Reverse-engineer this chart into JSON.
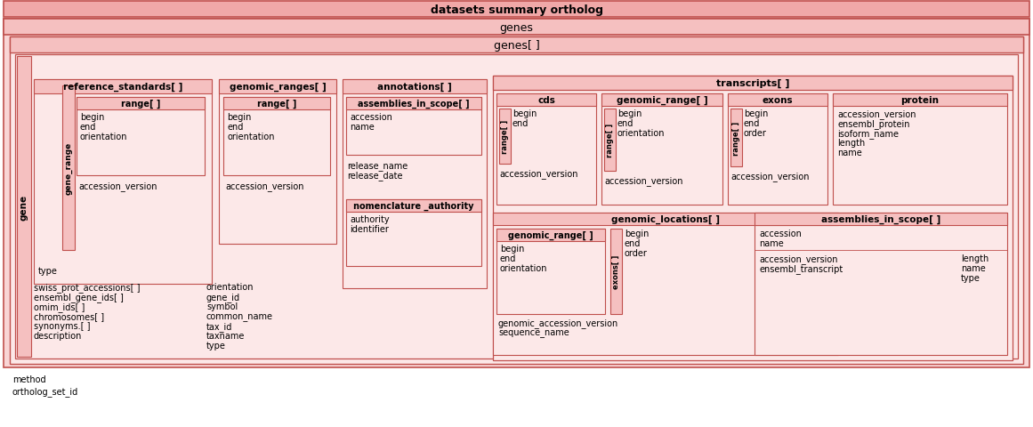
{
  "outer_title": "datasets summary ortholog",
  "genes_label": "genes",
  "genes_arr_label": "genes[ ]",
  "gene_label": "gene",
  "gene_range_label": "gene_range",
  "bg_lightest": "#fdf0f0",
  "bg_light": "#f9e0e0",
  "bg_medium": "#f5c8c8",
  "bg_dark": "#f0b0b0",
  "border_color": "#c0504d",
  "ref_std_label": "reference_standards[ ]",
  "range_in_ref_label": "range[ ]",
  "range_in_ref_fields": [
    "begin",
    "end",
    "orientation"
  ],
  "ref_std_acc": "accession_version",
  "ref_std_type": "type",
  "gen_ranges_label": "genomic_ranges[ ]",
  "range_in_gr_label": "range[ ]",
  "range_in_gr_fields": [
    "begin",
    "end",
    "orientation"
  ],
  "gen_ranges_acc": "accession_version",
  "annot_label": "annotations[ ]",
  "assemblies_in_scope_label": "assemblies_in_scope[ ]",
  "assemblies_fields": [
    "accession",
    "name"
  ],
  "annot_fields": [
    "release_name",
    "release_date"
  ],
  "nomenclature_label": "nomenclature _authority",
  "nomenclature_fields": [
    "authority",
    "identifier"
  ],
  "transcripts_label": "transcripts[ ]",
  "cds_label": "cds",
  "cds_range_label": "range[ ]",
  "cds_range_fields": [
    "begin",
    "end"
  ],
  "cds_acc": "accession_version",
  "genomic_range_label": "genomic_range[ ]",
  "gr_range_label": "range[ ]",
  "gr_range_fields": [
    "begin",
    "end",
    "orientation"
  ],
  "gr_acc": "accession_version",
  "exons_label": "exons",
  "exons_range_label": "range[ ]",
  "exons_range_fields": [
    "begin",
    "end",
    "order"
  ],
  "exons_acc": "accession_version",
  "protein_label": "protein",
  "protein_fields": [
    "accession_version",
    "ensembl_protein",
    "isoform_name",
    "length",
    "name"
  ],
  "genomic_locs_label": "genomic_locations[ ]",
  "gen_loc_range_label": "genomic_range[ ]",
  "gen_loc_range_fields": [
    "begin",
    "end",
    "orientation"
  ],
  "exons_inner_label": "exons[ ]",
  "exons_inner_fields": [
    "begin",
    "end",
    "order"
  ],
  "gen_loc_bottom": [
    "genomic_accession_version",
    "sequence_name"
  ],
  "assemblies2_label": "assemblies_in_scope[ ]",
  "assemblies2_fields": [
    "accession",
    "name"
  ],
  "assemblies2_bottom": [
    "accession_version",
    "ensembl_transcript"
  ],
  "assemblies2_right": [
    "length",
    "name",
    "type"
  ],
  "gene_left_fields": [
    "swiss_prot_accessions[ ]",
    "ensembl_gene_ids[ ]",
    "omim_ids[ ]",
    "chromosomes[ ]",
    "synonyms.[ ]",
    "description"
  ],
  "gene_right_fields": [
    "orientation",
    "gene_id",
    "symbol",
    "common_name",
    "tax_id",
    "taxname",
    "type"
  ],
  "bottom_fields": [
    "method",
    "ortholog_set_id"
  ]
}
